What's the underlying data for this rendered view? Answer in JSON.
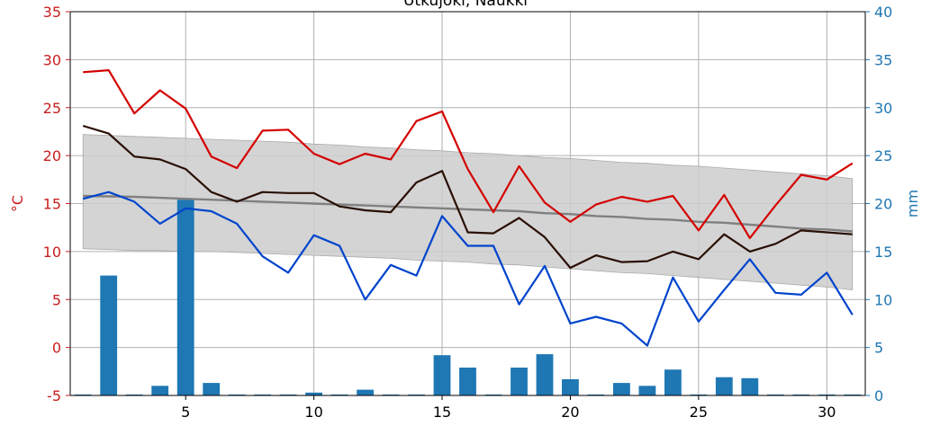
{
  "chart_data": {
    "type": "line",
    "title": "Utkujoki, Naukki",
    "ylabel_left": "°C",
    "ylabel_right": "mm",
    "xlim": [
      0.5,
      31.5
    ],
    "ylim_left": [
      -5,
      35
    ],
    "ylim_right": [
      0,
      40
    ],
    "x_ticks": [
      5,
      10,
      15,
      20,
      25,
      30
    ],
    "y_ticks_left": [
      -5,
      0,
      5,
      10,
      15,
      20,
      25,
      30,
      35
    ],
    "y_ticks_right": [
      0,
      5,
      10,
      15,
      20,
      25,
      30,
      35,
      40
    ],
    "grid": true,
    "colors": {
      "max_temp": "#d40000",
      "mean_temp": "#2a0f05",
      "min_temp": "#0044cc",
      "mean_temp_normal": "#808080",
      "range_band": "#cccccc",
      "precipitation": "#1f77b4",
      "left_axis": "#c81e1e",
      "right_axis": "#1f77b4"
    },
    "x": [
      1,
      2,
      3,
      4,
      5,
      6,
      7,
      8,
      9,
      10,
      11,
      12,
      13,
      14,
      15,
      16,
      17,
      18,
      19,
      20,
      21,
      22,
      23,
      24,
      25,
      26,
      27,
      28,
      29,
      30,
      31
    ],
    "series": [
      {
        "key": "max_temp",
        "axis": "left",
        "values": [
          28.7,
          28.9,
          24.4,
          26.8,
          24.9,
          19.9,
          18.7,
          22.6,
          22.7,
          20.2,
          19.1,
          20.2,
          19.6,
          23.6,
          24.6,
          18.6,
          14.1,
          18.9,
          15.1,
          13.1,
          14.9,
          15.7,
          15.2,
          15.8,
          12.2,
          15.9,
          11.4,
          14.8,
          18.0,
          17.5,
          19.2
        ]
      },
      {
        "key": "mean_temp",
        "axis": "left",
        "values": [
          23.1,
          22.3,
          19.9,
          19.6,
          18.6,
          16.2,
          15.2,
          16.2,
          16.1,
          16.1,
          14.7,
          14.3,
          14.1,
          17.2,
          18.4,
          12.0,
          11.9,
          13.5,
          11.5,
          8.3,
          9.6,
          8.9,
          9.0,
          10.0,
          9.2,
          11.8,
          10.0,
          10.8,
          12.2,
          12.0,
          11.8
        ]
      },
      {
        "key": "min_temp",
        "axis": "left",
        "values": [
          15.5,
          16.2,
          15.2,
          12.9,
          14.5,
          14.2,
          12.9,
          9.5,
          7.8,
          11.7,
          10.6,
          5.0,
          8.6,
          7.5,
          13.7,
          10.6,
          10.6,
          4.5,
          8.5,
          2.5,
          3.2,
          2.5,
          0.2,
          7.3,
          2.7,
          6.0,
          9.2,
          5.7,
          5.5,
          7.8,
          3.4
        ]
      },
      {
        "key": "mean_temp_normal",
        "axis": "left",
        "values": [
          15.8,
          15.75,
          15.7,
          15.6,
          15.5,
          15.4,
          15.3,
          15.2,
          15.1,
          15.0,
          14.9,
          14.8,
          14.7,
          14.6,
          14.5,
          14.4,
          14.3,
          14.2,
          14.0,
          13.9,
          13.7,
          13.6,
          13.4,
          13.3,
          13.1,
          13.0,
          12.8,
          12.6,
          12.4,
          12.3,
          12.1
        ]
      },
      {
        "key": "range_band_upper",
        "axis": "left",
        "values": [
          22.2,
          22.1,
          22.0,
          21.9,
          21.8,
          21.7,
          21.6,
          21.5,
          21.4,
          21.2,
          21.1,
          20.9,
          20.8,
          20.6,
          20.5,
          20.3,
          20.2,
          20.0,
          19.8,
          19.7,
          19.5,
          19.3,
          19.2,
          19.0,
          18.9,
          18.7,
          18.5,
          18.3,
          18.1,
          17.9,
          17.6
        ]
      },
      {
        "key": "range_band_lower",
        "axis": "left",
        "values": [
          10.3,
          10.2,
          10.1,
          10.1,
          10.0,
          10.0,
          9.9,
          9.8,
          9.7,
          9.6,
          9.5,
          9.4,
          9.3,
          9.1,
          9.0,
          8.9,
          8.7,
          8.6,
          8.4,
          8.2,
          8.0,
          7.8,
          7.7,
          7.5,
          7.3,
          7.1,
          6.9,
          6.7,
          6.5,
          6.3,
          6.0
        ]
      },
      {
        "key": "precipitation",
        "axis": "right",
        "type": "bar",
        "values": [
          0.1,
          12.5,
          0.1,
          1.0,
          20.4,
          1.3,
          0.1,
          0.1,
          0.1,
          0.3,
          0.1,
          0.6,
          0.1,
          0.1,
          4.2,
          2.9,
          0.1,
          2.9,
          4.3,
          1.7,
          0.1,
          1.3,
          1.0,
          2.7,
          0.1,
          1.9,
          1.8,
          0.1,
          0.1,
          0.1,
          0.1
        ]
      }
    ]
  }
}
